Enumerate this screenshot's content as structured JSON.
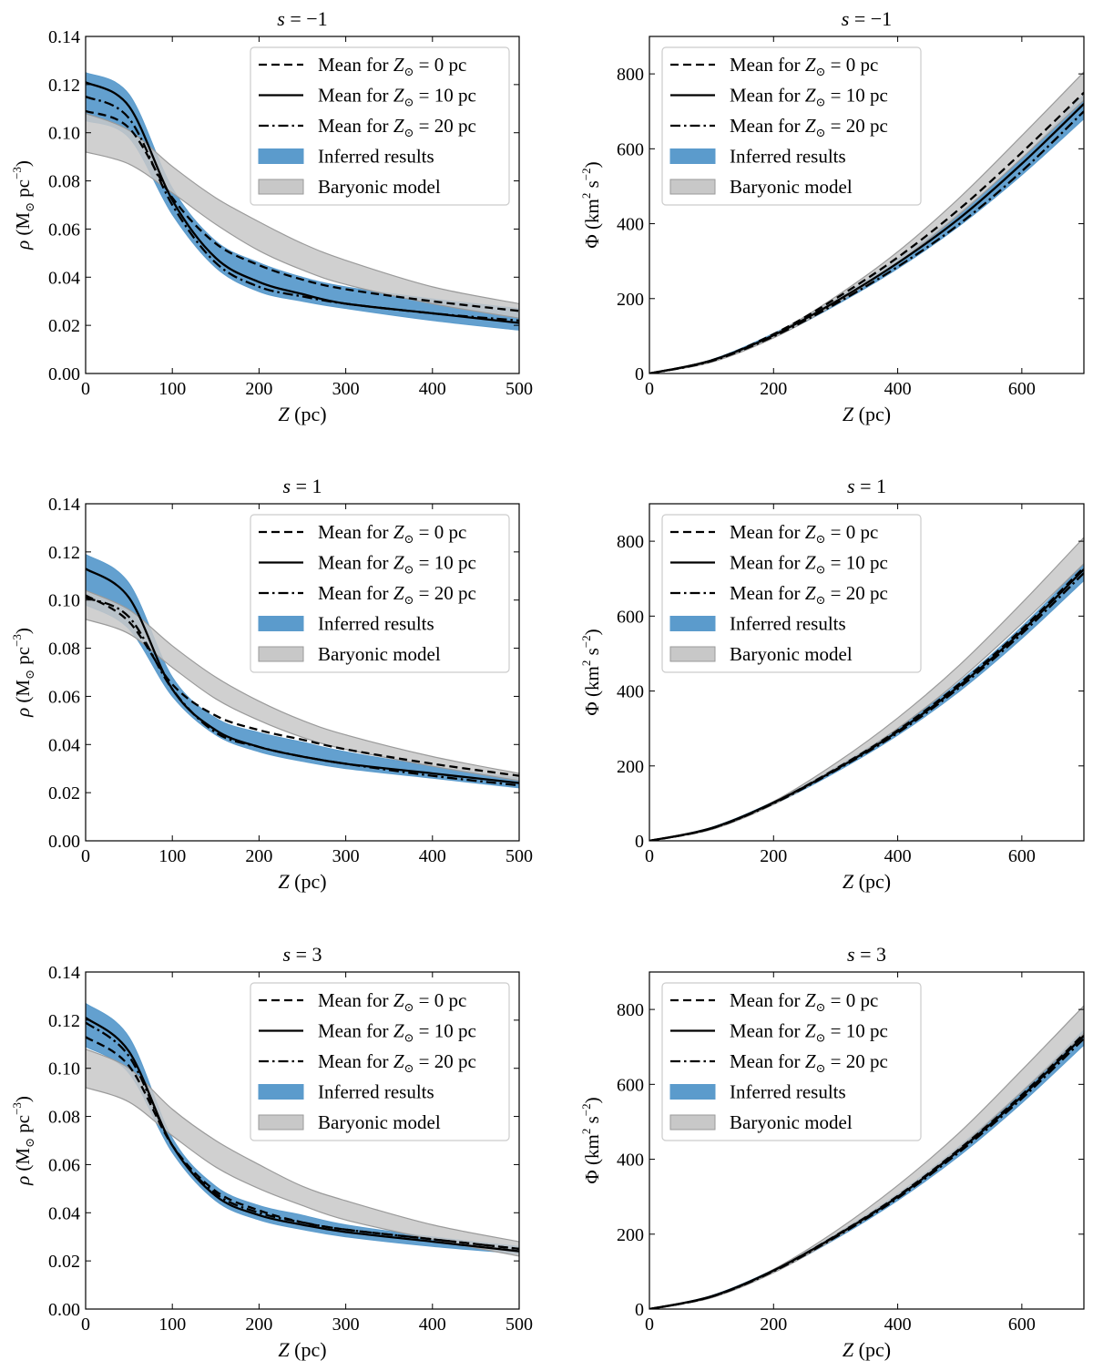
{
  "figure": {
    "description": "Six panels: density rho(Z) (left) and potential Phi(Z) (right) for three values of s"
  },
  "legend_entries": [
    {
      "label": "Mean for Z_sun = 0 pc",
      "text_pre": "Mean for ",
      "text_var": "Z",
      "text_sub": "⊙",
      "text_post": " = 0 pc",
      "style": "dashed"
    },
    {
      "label": "Mean for Z_sun = 10 pc",
      "text_pre": "Mean for ",
      "text_var": "Z",
      "text_sub": "⊙",
      "text_post": " = 10 pc",
      "style": "solid"
    },
    {
      "label": "Mean for Z_sun = 20 pc",
      "text_pre": "Mean for ",
      "text_var": "Z",
      "text_sub": "⊙",
      "text_post": " = 20 pc",
      "style": "dashdot"
    },
    {
      "label": "Inferred results",
      "text_pre": "Inferred results",
      "style": "band-blue"
    },
    {
      "label": "Baryonic model",
      "text_pre": "Baryonic model",
      "style": "band-gray"
    }
  ],
  "colors": {
    "inferred_band": "#5b9bcc",
    "baryonic_band": "#c8c8c8",
    "baryonic_edge": "#9a9a9a",
    "lines": "#000000"
  },
  "chart_data": [
    {
      "panel": "rho-s-1",
      "type": "line",
      "title": "s = −1",
      "title_var": "s",
      "title_rest": " = −1",
      "xlabel": "Z (pc)",
      "ylabel": "ρ (M⊙ pc−3)",
      "xlim": [
        0,
        500
      ],
      "ylim": [
        0,
        0.14
      ],
      "xticks": [
        0,
        100,
        200,
        300,
        400,
        500
      ],
      "yticks": [
        "0.00",
        "0.02",
        "0.04",
        "0.06",
        "0.08",
        "0.10",
        "0.12",
        "0.14"
      ],
      "x": [
        0,
        50,
        100,
        150,
        200,
        250,
        300,
        400,
        500
      ],
      "series": [
        {
          "name": "Mean for Z_sun = 0 pc",
          "style": "dashed",
          "values": [
            0.109,
            0.102,
            0.073,
            0.054,
            0.045,
            0.039,
            0.035,
            0.03,
            0.026
          ]
        },
        {
          "name": "Mean for Z_sun = 10 pc",
          "style": "solid",
          "values": [
            0.121,
            0.111,
            0.072,
            0.048,
            0.038,
            0.033,
            0.029,
            0.025,
            0.021
          ]
        },
        {
          "name": "Mean for Z_sun = 20 pc",
          "style": "dashdot",
          "values": [
            0.115,
            0.106,
            0.07,
            0.046,
            0.036,
            0.032,
            0.029,
            0.025,
            0.022
          ]
        }
      ],
      "bands": [
        {
          "name": "Inferred results",
          "lower": [
            0.105,
            0.098,
            0.066,
            0.044,
            0.034,
            0.03,
            0.027,
            0.022,
            0.018
          ],
          "upper": [
            0.125,
            0.116,
            0.077,
            0.055,
            0.046,
            0.04,
            0.036,
            0.031,
            0.027
          ]
        },
        {
          "name": "Baryonic model",
          "lower": [
            0.092,
            0.087,
            0.075,
            0.062,
            0.051,
            0.043,
            0.037,
            0.029,
            0.023
          ],
          "upper": [
            0.108,
            0.101,
            0.086,
            0.073,
            0.063,
            0.054,
            0.047,
            0.036,
            0.029
          ]
        }
      ]
    },
    {
      "panel": "phi-s-1",
      "type": "line",
      "title": "s = −1",
      "title_var": "s",
      "title_rest": " = −1",
      "xlabel": "Z (pc)",
      "ylabel": "Φ (km2 s−2)",
      "xlim": [
        0,
        700
      ],
      "ylim": [
        0,
        900
      ],
      "xticks": [
        0,
        200,
        400,
        600
      ],
      "yticks": [
        "0",
        "200",
        "400",
        "600",
        "800"
      ],
      "x": [
        0,
        100,
        200,
        300,
        400,
        500,
        600,
        700
      ],
      "series": [
        {
          "name": "Mean for Z_sun = 0 pc",
          "style": "dashed",
          "values": [
            0,
            35,
            105,
            200,
            310,
            440,
            590,
            750
          ]
        },
        {
          "name": "Mean for Z_sun = 10 pc",
          "style": "solid",
          "values": [
            0,
            35,
            102,
            192,
            295,
            415,
            560,
            720
          ]
        },
        {
          "name": "Mean for Z_sun = 20 pc",
          "style": "dashdot",
          "values": [
            0,
            33,
            99,
            186,
            285,
            400,
            540,
            700
          ]
        }
      ],
      "bands": [
        {
          "name": "Inferred results",
          "lower": [
            0,
            32,
            96,
            182,
            280,
            395,
            530,
            680
          ],
          "upper": [
            0,
            37,
            107,
            198,
            305,
            430,
            575,
            745
          ]
        },
        {
          "name": "Baryonic model",
          "lower": [
            0,
            30,
            95,
            186,
            296,
            426,
            575,
            730
          ],
          "upper": [
            0,
            33,
            104,
            205,
            325,
            470,
            635,
            805
          ]
        }
      ]
    },
    {
      "panel": "rho-s1",
      "type": "line",
      "title": "s = 1",
      "title_var": "s",
      "title_rest": " = 1",
      "xlabel": "Z (pc)",
      "ylabel": "ρ (M⊙ pc−3)",
      "xlim": [
        0,
        500
      ],
      "ylim": [
        0,
        0.14
      ],
      "xticks": [
        0,
        100,
        200,
        300,
        400,
        500
      ],
      "yticks": [
        "0.00",
        "0.02",
        "0.04",
        "0.06",
        "0.08",
        "0.10",
        "0.12",
        "0.14"
      ],
      "x": [
        0,
        50,
        100,
        150,
        200,
        250,
        300,
        400,
        500
      ],
      "series": [
        {
          "name": "Mean for Z_sun = 0 pc",
          "style": "dashed",
          "values": [
            0.102,
            0.091,
            0.065,
            0.052,
            0.046,
            0.042,
            0.038,
            0.032,
            0.027
          ]
        },
        {
          "name": "Mean for Z_sun = 10 pc",
          "style": "solid",
          "values": [
            0.113,
            0.101,
            0.063,
            0.046,
            0.039,
            0.035,
            0.032,
            0.028,
            0.024
          ]
        },
        {
          "name": "Mean for Z_sun = 20 pc",
          "style": "dashdot",
          "values": [
            0.101,
            0.093,
            0.063,
            0.045,
            0.039,
            0.035,
            0.032,
            0.027,
            0.023
          ]
        }
      ],
      "bands": [
        {
          "name": "Inferred results",
          "lower": [
            0.098,
            0.088,
            0.06,
            0.044,
            0.037,
            0.033,
            0.03,
            0.026,
            0.022
          ],
          "upper": [
            0.119,
            0.107,
            0.068,
            0.051,
            0.045,
            0.041,
            0.037,
            0.031,
            0.026
          ]
        },
        {
          "name": "Baryonic model",
          "lower": [
            0.092,
            0.086,
            0.072,
            0.059,
            0.05,
            0.043,
            0.038,
            0.031,
            0.025
          ],
          "upper": [
            0.104,
            0.096,
            0.081,
            0.068,
            0.058,
            0.05,
            0.044,
            0.035,
            0.028
          ]
        }
      ]
    },
    {
      "panel": "phi-s1",
      "type": "line",
      "title": "s = 1",
      "title_var": "s",
      "title_rest": " = 1",
      "xlabel": "Z (pc)",
      "ylabel": "Φ (km2 s−2)",
      "xlim": [
        0,
        700
      ],
      "ylim": [
        0,
        900
      ],
      "xticks": [
        0,
        200,
        400,
        600
      ],
      "yticks": [
        "0",
        "200",
        "400",
        "600",
        "800"
      ],
      "x": [
        0,
        100,
        200,
        300,
        400,
        500,
        600,
        700
      ],
      "series": [
        {
          "name": "Mean for Z_sun = 0 pc",
          "style": "dashed",
          "values": [
            0,
            33,
            102,
            192,
            295,
            420,
            565,
            730
          ]
        },
        {
          "name": "Mean for Z_sun = 10 pc",
          "style": "solid",
          "values": [
            0,
            34,
            102,
            190,
            292,
            415,
            560,
            725
          ]
        },
        {
          "name": "Mean for Z_sun = 20 pc",
          "style": "dashdot",
          "values": [
            0,
            33,
            100,
            188,
            288,
            410,
            553,
            715
          ]
        }
      ],
      "bands": [
        {
          "name": "Inferred results",
          "lower": [
            0,
            31,
            97,
            183,
            282,
            400,
            540,
            695
          ],
          "upper": [
            0,
            36,
            105,
            196,
            300,
            425,
            572,
            740
          ]
        },
        {
          "name": "Baryonic model",
          "lower": [
            0,
            30,
            97,
            190,
            300,
            430,
            580,
            740
          ],
          "upper": [
            0,
            33,
            105,
            207,
            328,
            470,
            635,
            810
          ]
        }
      ]
    },
    {
      "panel": "rho-s3",
      "type": "line",
      "title": "s = 3",
      "title_var": "s",
      "title_rest": " = 3",
      "xlabel": "Z (pc)",
      "ylabel": "ρ (M⊙ pc−3)",
      "xlim": [
        0,
        500
      ],
      "ylim": [
        0,
        0.14
      ],
      "xticks": [
        0,
        100,
        200,
        300,
        400,
        500
      ],
      "yticks": [
        "0.00",
        "0.02",
        "0.04",
        "0.06",
        "0.08",
        "0.10",
        "0.12",
        "0.14"
      ],
      "x": [
        0,
        50,
        100,
        150,
        200,
        250,
        300,
        400,
        500
      ],
      "series": [
        {
          "name": "Mean for Z_sun = 0 pc",
          "style": "dashed",
          "values": [
            0.113,
            0.101,
            0.068,
            0.049,
            0.041,
            0.036,
            0.033,
            0.029,
            0.025
          ]
        },
        {
          "name": "Mean for Z_sun = 10 pc",
          "style": "solid",
          "values": [
            0.121,
            0.107,
            0.068,
            0.047,
            0.039,
            0.035,
            0.032,
            0.028,
            0.024
          ]
        },
        {
          "name": "Mean for Z_sun = 20 pc",
          "style": "dashdot",
          "values": [
            0.119,
            0.105,
            0.068,
            0.048,
            0.04,
            0.036,
            0.033,
            0.029,
            0.025
          ]
        }
      ],
      "bands": [
        {
          "name": "Inferred results",
          "lower": [
            0.109,
            0.098,
            0.065,
            0.045,
            0.037,
            0.033,
            0.03,
            0.026,
            0.023
          ],
          "upper": [
            0.127,
            0.113,
            0.071,
            0.051,
            0.043,
            0.039,
            0.035,
            0.03,
            0.026
          ]
        },
        {
          "name": "Baryonic model",
          "lower": [
            0.092,
            0.086,
            0.072,
            0.059,
            0.05,
            0.043,
            0.037,
            0.029,
            0.022
          ],
          "upper": [
            0.108,
            0.1,
            0.083,
            0.07,
            0.06,
            0.051,
            0.045,
            0.035,
            0.028
          ]
        }
      ]
    },
    {
      "panel": "phi-s3",
      "type": "line",
      "title": "s = 3",
      "title_var": "s",
      "title_rest": " = 3",
      "xlabel": "Z (pc)",
      "ylabel": "Φ (km2 s−2)",
      "xlim": [
        0,
        700
      ],
      "ylim": [
        0,
        900
      ],
      "xticks": [
        0,
        200,
        400,
        600
      ],
      "yticks": [
        "0",
        "200",
        "400",
        "600",
        "800"
      ],
      "x": [
        0,
        100,
        200,
        300,
        400,
        500,
        600,
        700
      ],
      "series": [
        {
          "name": "Mean for Z_sun = 0 pc",
          "style": "dashed",
          "values": [
            0,
            33,
            103,
            196,
            302,
            428,
            572,
            735
          ]
        },
        {
          "name": "Mean for Z_sun = 10 pc",
          "style": "solid",
          "values": [
            0,
            34,
            103,
            195,
            300,
            425,
            568,
            730
          ]
        },
        {
          "name": "Mean for Z_sun = 20 pc",
          "style": "dashdot",
          "values": [
            0,
            33,
            101,
            192,
            296,
            420,
            562,
            722
          ]
        }
      ],
      "bands": [
        {
          "name": "Inferred results",
          "lower": [
            0,
            31,
            98,
            187,
            290,
            410,
            550,
            705
          ],
          "upper": [
            0,
            36,
            106,
            200,
            308,
            436,
            582,
            745
          ]
        },
        {
          "name": "Baryonic model",
          "lower": [
            0,
            30,
            97,
            190,
            300,
            430,
            580,
            735
          ],
          "upper": [
            0,
            33,
            106,
            208,
            330,
            472,
            638,
            810
          ]
        }
      ]
    }
  ]
}
